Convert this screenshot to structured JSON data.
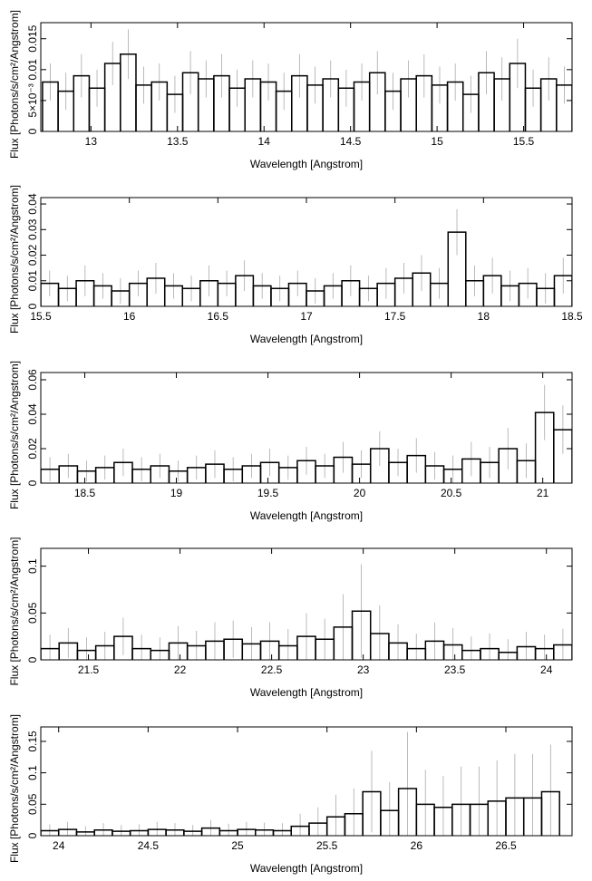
{
  "chart_data": [
    {
      "type": "histogram",
      "xlabel": "Wavelength [Angstrom]",
      "ylabel": "Flux [Photons/s/cm²/Angstrom]",
      "xlim": [
        12.71,
        15.78
      ],
      "ylim": [
        0,
        0.0176
      ],
      "xticks": [
        13,
        13.5,
        14,
        14.5,
        15,
        15.5
      ],
      "yticks": [
        0,
        {
          "value": 0.005,
          "label": "5×10⁻³"
        },
        0.01,
        0.015
      ],
      "bins": [
        12.72,
        12.81,
        12.9,
        12.99,
        13.08,
        13.17,
        13.26,
        13.35,
        13.44,
        13.53,
        13.62,
        13.71,
        13.8,
        13.89,
        13.98,
        14.07,
        14.16,
        14.25,
        14.34,
        14.43,
        14.52,
        14.61,
        14.7,
        14.79,
        14.88,
        14.97,
        15.06,
        15.15,
        15.24,
        15.33,
        15.42,
        15.51,
        15.6,
        15.69,
        15.78
      ],
      "values": [
        0.008,
        0.0065,
        0.009,
        0.007,
        0.011,
        0.0125,
        0.0075,
        0.008,
        0.006,
        0.0095,
        0.0085,
        0.009,
        0.007,
        0.0085,
        0.008,
        0.0065,
        0.009,
        0.0075,
        0.0085,
        0.007,
        0.008,
        0.0095,
        0.0065,
        0.0085,
        0.009,
        0.0075,
        0.008,
        0.006,
        0.0095,
        0.0085,
        0.011,
        0.007,
        0.0085,
        0.0075
      ],
      "errors": [
        0.003,
        0.003,
        0.0035,
        0.003,
        0.0035,
        0.004,
        0.003,
        0.003,
        0.003,
        0.0035,
        0.003,
        0.0035,
        0.003,
        0.003,
        0.003,
        0.003,
        0.0035,
        0.003,
        0.003,
        0.003,
        0.003,
        0.0035,
        0.003,
        0.003,
        0.0035,
        0.003,
        0.003,
        0.003,
        0.0035,
        0.0035,
        0.004,
        0.003,
        0.0035,
        0.003
      ],
      "color": "#000000",
      "error_color": "#aaaaaa"
    },
    {
      "type": "histogram",
      "xlabel": "Wavelength [Angstrom]",
      "ylabel": "Flux [Photons/s/cm²/Angstrom]",
      "xlim": [
        15.5,
        18.5
      ],
      "ylim": [
        0,
        0.0425
      ],
      "xticks": [
        15.5,
        16,
        16.5,
        17,
        17.5,
        18,
        18.5
      ],
      "yticks": [
        0,
        0.01,
        0.02,
        0.03,
        0.04
      ],
      "bins": [
        15.5,
        15.6,
        15.7,
        15.8,
        15.9,
        16,
        16.1,
        16.2,
        16.3,
        16.4,
        16.5,
        16.6,
        16.7,
        16.8,
        16.9,
        17,
        17.1,
        17.2,
        17.3,
        17.4,
        17.5,
        17.6,
        17.7,
        17.8,
        17.9,
        18,
        18.1,
        18.2,
        18.3,
        18.4,
        18.5
      ],
      "values": [
        0.009,
        0.007,
        0.01,
        0.008,
        0.006,
        0.009,
        0.011,
        0.008,
        0.007,
        0.01,
        0.009,
        0.012,
        0.008,
        0.007,
        0.009,
        0.006,
        0.008,
        0.01,
        0.007,
        0.009,
        0.011,
        0.013,
        0.009,
        0.029,
        0.01,
        0.012,
        0.008,
        0.009,
        0.007,
        0.012
      ],
      "errors": [
        0.005,
        0.005,
        0.006,
        0.005,
        0.005,
        0.005,
        0.006,
        0.005,
        0.005,
        0.006,
        0.005,
        0.006,
        0.005,
        0.005,
        0.005,
        0.005,
        0.005,
        0.006,
        0.005,
        0.006,
        0.006,
        0.007,
        0.006,
        0.009,
        0.006,
        0.007,
        0.006,
        0.006,
        0.006,
        0.007
      ],
      "color": "#000000",
      "error_color": "#aaaaaa"
    },
    {
      "type": "histogram",
      "xlabel": "Wavelength [Angstrom]",
      "ylabel": "Flux [Photons/s/cm²/Angstrom]",
      "xlim": [
        18.26,
        21.16
      ],
      "ylim": [
        0,
        0.0642
      ],
      "xticks": [
        18.5,
        19,
        19.5,
        20,
        20.5,
        21
      ],
      "yticks": [
        0,
        0.02,
        0.04,
        0.06
      ],
      "bins": [
        18.26,
        18.36,
        18.46,
        18.56,
        18.66,
        18.76,
        18.86,
        18.96,
        19.06,
        19.16,
        19.26,
        19.36,
        19.46,
        19.56,
        19.66,
        19.76,
        19.86,
        19.96,
        20.06,
        20.16,
        20.26,
        20.36,
        20.46,
        20.56,
        20.66,
        20.76,
        20.86,
        20.96,
        21.06,
        21.16
      ],
      "values": [
        0.008,
        0.01,
        0.007,
        0.009,
        0.012,
        0.008,
        0.01,
        0.007,
        0.009,
        0.011,
        0.008,
        0.01,
        0.012,
        0.009,
        0.013,
        0.01,
        0.015,
        0.011,
        0.02,
        0.012,
        0.016,
        0.01,
        0.008,
        0.014,
        0.012,
        0.02,
        0.013,
        0.041,
        0.031
      ],
      "errors": [
        0.007,
        0.007,
        0.006,
        0.007,
        0.008,
        0.007,
        0.007,
        0.006,
        0.007,
        0.008,
        0.007,
        0.007,
        0.008,
        0.007,
        0.008,
        0.007,
        0.009,
        0.008,
        0.01,
        0.008,
        0.01,
        0.008,
        0.008,
        0.01,
        0.009,
        0.012,
        0.01,
        0.016,
        0.014
      ],
      "color": "#000000",
      "error_color": "#aaaaaa"
    },
    {
      "type": "histogram",
      "xlabel": "Wavelength [Angstrom]",
      "ylabel": "Flux [Photons/s/cm²/Angstrom]",
      "xlim": [
        21.24,
        24.14
      ],
      "ylim": [
        0,
        0.119
      ],
      "xticks": [
        21.5,
        22,
        22.5,
        23,
        23.5,
        24
      ],
      "yticks": [
        0,
        0.05,
        0.1
      ],
      "bins": [
        21.24,
        21.34,
        21.44,
        21.54,
        21.64,
        21.74,
        21.84,
        21.94,
        22.04,
        22.14,
        22.24,
        22.34,
        22.44,
        22.54,
        22.64,
        22.74,
        22.84,
        22.94,
        23.04,
        23.14,
        23.24,
        23.34,
        23.44,
        23.54,
        23.64,
        23.74,
        23.84,
        23.94,
        24.04,
        24.14
      ],
      "values": [
        0.012,
        0.018,
        0.01,
        0.015,
        0.025,
        0.012,
        0.01,
        0.018,
        0.015,
        0.02,
        0.022,
        0.017,
        0.02,
        0.015,
        0.025,
        0.022,
        0.035,
        0.052,
        0.028,
        0.018,
        0.012,
        0.02,
        0.016,
        0.01,
        0.012,
        0.008,
        0.014,
        0.012,
        0.016
      ],
      "errors": [
        0.015,
        0.016,
        0.014,
        0.015,
        0.02,
        0.015,
        0.014,
        0.018,
        0.016,
        0.02,
        0.02,
        0.018,
        0.02,
        0.018,
        0.025,
        0.022,
        0.035,
        0.05,
        0.03,
        0.02,
        0.016,
        0.02,
        0.018,
        0.015,
        0.016,
        0.014,
        0.016,
        0.015,
        0.017
      ],
      "color": "#000000",
      "error_color": "#aaaaaa"
    },
    {
      "type": "histogram",
      "xlabel": "Wavelength [Angstrom]",
      "ylabel": "Flux [Photons/s/cm²/Angstrom]",
      "xlim": [
        23.9,
        26.87
      ],
      "ylim": [
        0,
        0.173
      ],
      "xticks": [
        24,
        24.5,
        25,
        25.5,
        26,
        26.5
      ],
      "yticks": [
        0,
        0.05,
        0.1,
        0.15
      ],
      "bins": [
        23.9,
        24,
        24.1,
        24.2,
        24.3,
        24.4,
        24.5,
        24.6,
        24.7,
        24.8,
        24.9,
        25,
        25.1,
        25.2,
        25.3,
        25.4,
        25.5,
        25.6,
        25.7,
        25.8,
        25.9,
        26,
        26.1,
        26.2,
        26.3,
        26.4,
        26.5,
        26.6,
        26.7,
        26.8
      ],
      "values": [
        0.008,
        0.01,
        0.006,
        0.009,
        0.007,
        0.008,
        0.01,
        0.009,
        0.007,
        0.012,
        0.008,
        0.01,
        0.009,
        0.008,
        0.015,
        0.02,
        0.03,
        0.035,
        0.07,
        0.04,
        0.075,
        0.05,
        0.045,
        0.05,
        0.05,
        0.055,
        0.06,
        0.06,
        0.07
      ],
      "errors": [
        0.01,
        0.012,
        0.009,
        0.011,
        0.01,
        0.01,
        0.012,
        0.011,
        0.01,
        0.013,
        0.011,
        0.012,
        0.012,
        0.012,
        0.02,
        0.025,
        0.035,
        0.04,
        0.065,
        0.045,
        0.09,
        0.055,
        0.05,
        0.06,
        0.06,
        0.065,
        0.07,
        0.07,
        0.075
      ],
      "color": "#000000",
      "error_color": "#aaaaaa"
    }
  ]
}
